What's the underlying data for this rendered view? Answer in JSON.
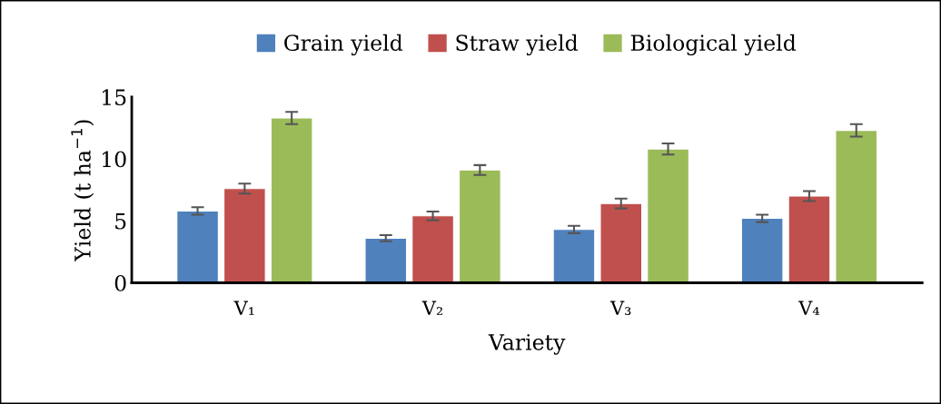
{
  "chart_data": {
    "type": "bar",
    "xlabel": "Variety",
    "ylabel": "Yield (t ha$^{−1}$)",
    "categories": [
      "V₁",
      "V₂",
      "V₃",
      "V₄"
    ],
    "series": [
      {
        "name": "Grain yield",
        "color": "#4f81bd",
        "values": [
          5.8,
          3.6,
          4.3,
          5.2
        ],
        "errors": [
          0.3,
          0.25,
          0.3,
          0.3
        ]
      },
      {
        "name": "Straw yield",
        "color": "#c0504d",
        "values": [
          7.6,
          5.4,
          6.4,
          7.0
        ],
        "errors": [
          0.4,
          0.35,
          0.4,
          0.4
        ]
      },
      {
        "name": "Biological yield",
        "color": "#9bbb59",
        "values": [
          13.3,
          9.1,
          10.8,
          12.3
        ],
        "errors": [
          0.5,
          0.4,
          0.45,
          0.5
        ]
      }
    ],
    "ylim": [
      0,
      15
    ],
    "yticks": [
      0,
      5,
      10,
      15
    ],
    "grid": false,
    "legend": "top"
  }
}
